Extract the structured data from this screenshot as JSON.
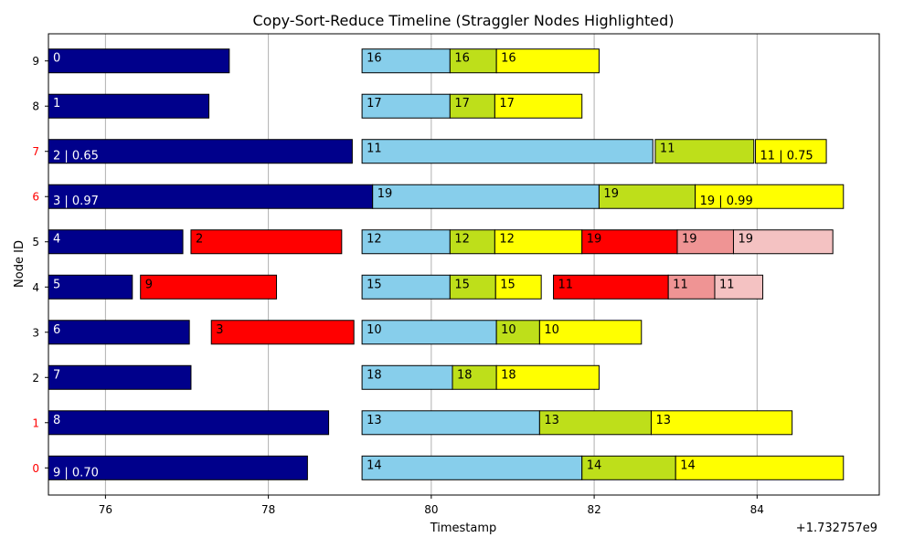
{
  "chart_data": {
    "type": "bar",
    "orientation": "horizontal-gantt",
    "title": "Copy-Sort-Reduce Timeline (Straggler Nodes Highlighted)",
    "xlabel": "Timestamp",
    "ylabel": "Node ID",
    "x_offset_label": "+1.732757e9",
    "xlim": [
      75.3,
      85.5
    ],
    "ylim": [
      -0.6,
      9.6
    ],
    "xticks": [
      76,
      78,
      80,
      82,
      84
    ],
    "xtick_labels": [
      "76",
      "78",
      "80",
      "82",
      "84"
    ],
    "yticks": [
      0,
      1,
      2,
      3,
      4,
      5,
      6,
      7,
      8,
      9
    ],
    "ytick_labels": [
      "0",
      "1",
      "2",
      "3",
      "4",
      "5",
      "6",
      "7",
      "8",
      "9"
    ],
    "straggler_nodes": [
      0,
      1,
      6,
      7
    ],
    "grid": "x",
    "legend": "none",
    "colors": {
      "copy": "#00008b",
      "straggler_copy": "#ff0000",
      "sort": "#87ceeb",
      "reduce1": "#bedf1a",
      "reduce2": "#ffff00",
      "extra_red": "#ff0000",
      "extra_rose": "#ef9494",
      "extra_pink": "#f4c2c2",
      "tick_highlight": "#ff0000",
      "tick_normal": "#000000"
    },
    "segments": [
      {
        "node": 9,
        "start": 75.3,
        "end": 77.52,
        "color": "copy",
        "label": "0"
      },
      {
        "node": 9,
        "start": 79.15,
        "end": 80.23,
        "color": "sort",
        "label": "16"
      },
      {
        "node": 9,
        "start": 80.23,
        "end": 80.8,
        "color": "reduce1",
        "label": "16"
      },
      {
        "node": 9,
        "start": 80.8,
        "end": 82.06,
        "color": "reduce2",
        "label": "16"
      },
      {
        "node": 8,
        "start": 75.3,
        "end": 77.27,
        "color": "copy",
        "label": "1"
      },
      {
        "node": 8,
        "start": 79.15,
        "end": 80.23,
        "color": "sort",
        "label": "17"
      },
      {
        "node": 8,
        "start": 80.23,
        "end": 80.78,
        "color": "reduce1",
        "label": "17"
      },
      {
        "node": 8,
        "start": 80.78,
        "end": 81.85,
        "color": "reduce2",
        "label": "17"
      },
      {
        "node": 7,
        "start": 75.3,
        "end": 79.03,
        "color": "copy",
        "label": "2 | 0.65"
      },
      {
        "node": 7,
        "start": 79.15,
        "end": 82.72,
        "color": "sort",
        "label": "11"
      },
      {
        "node": 7,
        "start": 82.75,
        "end": 83.96,
        "color": "reduce1",
        "label": "11"
      },
      {
        "node": 7,
        "start": 83.98,
        "end": 84.85,
        "color": "reduce2",
        "label": "11 | 0.75"
      },
      {
        "node": 6,
        "start": 75.3,
        "end": 79.28,
        "color": "copy",
        "label": "3 | 0.97"
      },
      {
        "node": 6,
        "start": 79.28,
        "end": 82.06,
        "color": "sort",
        "label": "19"
      },
      {
        "node": 6,
        "start": 82.06,
        "end": 83.24,
        "color": "reduce1",
        "label": "19"
      },
      {
        "node": 6,
        "start": 83.24,
        "end": 85.06,
        "color": "reduce2",
        "label": "19 | 0.99"
      },
      {
        "node": 5,
        "start": 75.3,
        "end": 76.95,
        "color": "copy",
        "label": "4"
      },
      {
        "node": 5,
        "start": 77.05,
        "end": 78.9,
        "color": "straggler_copy",
        "label": "2"
      },
      {
        "node": 5,
        "start": 79.15,
        "end": 80.23,
        "color": "sort",
        "label": "12"
      },
      {
        "node": 5,
        "start": 80.23,
        "end": 80.78,
        "color": "reduce1",
        "label": "12"
      },
      {
        "node": 5,
        "start": 80.78,
        "end": 81.85,
        "color": "reduce2",
        "label": "12"
      },
      {
        "node": 5,
        "start": 81.85,
        "end": 83.02,
        "color": "extra_red",
        "label": "19"
      },
      {
        "node": 5,
        "start": 83.02,
        "end": 83.71,
        "color": "extra_rose",
        "label": "19"
      },
      {
        "node": 5,
        "start": 83.71,
        "end": 84.93,
        "color": "extra_pink",
        "label": "19"
      },
      {
        "node": 4,
        "start": 75.3,
        "end": 76.33,
        "color": "copy",
        "label": "5"
      },
      {
        "node": 4,
        "start": 76.43,
        "end": 78.1,
        "color": "straggler_copy",
        "label": "9"
      },
      {
        "node": 4,
        "start": 79.15,
        "end": 80.23,
        "color": "sort",
        "label": "15"
      },
      {
        "node": 4,
        "start": 80.23,
        "end": 80.79,
        "color": "reduce1",
        "label": "15"
      },
      {
        "node": 4,
        "start": 80.79,
        "end": 81.35,
        "color": "reduce2",
        "label": "15"
      },
      {
        "node": 4,
        "start": 81.5,
        "end": 82.91,
        "color": "extra_red",
        "label": "11"
      },
      {
        "node": 4,
        "start": 82.91,
        "end": 83.48,
        "color": "extra_rose",
        "label": "11"
      },
      {
        "node": 4,
        "start": 83.48,
        "end": 84.07,
        "color": "extra_pink",
        "label": "11"
      },
      {
        "node": 3,
        "start": 75.3,
        "end": 77.03,
        "color": "copy",
        "label": "6"
      },
      {
        "node": 3,
        "start": 77.3,
        "end": 79.05,
        "color": "straggler_copy",
        "label": "3"
      },
      {
        "node": 3,
        "start": 79.15,
        "end": 80.8,
        "color": "sort",
        "label": "10"
      },
      {
        "node": 3,
        "start": 80.8,
        "end": 81.33,
        "color": "reduce1",
        "label": "10"
      },
      {
        "node": 3,
        "start": 81.33,
        "end": 82.58,
        "color": "reduce2",
        "label": "10"
      },
      {
        "node": 2,
        "start": 75.3,
        "end": 77.05,
        "color": "copy",
        "label": "7"
      },
      {
        "node": 2,
        "start": 79.15,
        "end": 80.26,
        "color": "sort",
        "label": "18"
      },
      {
        "node": 2,
        "start": 80.26,
        "end": 80.8,
        "color": "reduce1",
        "label": "18"
      },
      {
        "node": 2,
        "start": 80.8,
        "end": 82.06,
        "color": "reduce2",
        "label": "18"
      },
      {
        "node": 1,
        "start": 75.3,
        "end": 78.74,
        "color": "copy",
        "label": "8"
      },
      {
        "node": 1,
        "start": 79.15,
        "end": 81.33,
        "color": "sort",
        "label": "13"
      },
      {
        "node": 1,
        "start": 81.33,
        "end": 82.7,
        "color": "reduce1",
        "label": "13"
      },
      {
        "node": 1,
        "start": 82.7,
        "end": 84.43,
        "color": "reduce2",
        "label": "13"
      },
      {
        "node": 0,
        "start": 75.3,
        "end": 78.48,
        "color": "copy",
        "label": "9 | 0.70"
      },
      {
        "node": 0,
        "start": 79.15,
        "end": 81.85,
        "color": "sort",
        "label": "14"
      },
      {
        "node": 0,
        "start": 81.85,
        "end": 83.0,
        "color": "reduce1",
        "label": "14"
      },
      {
        "node": 0,
        "start": 83.0,
        "end": 85.06,
        "color": "reduce2",
        "label": "14"
      }
    ]
  }
}
